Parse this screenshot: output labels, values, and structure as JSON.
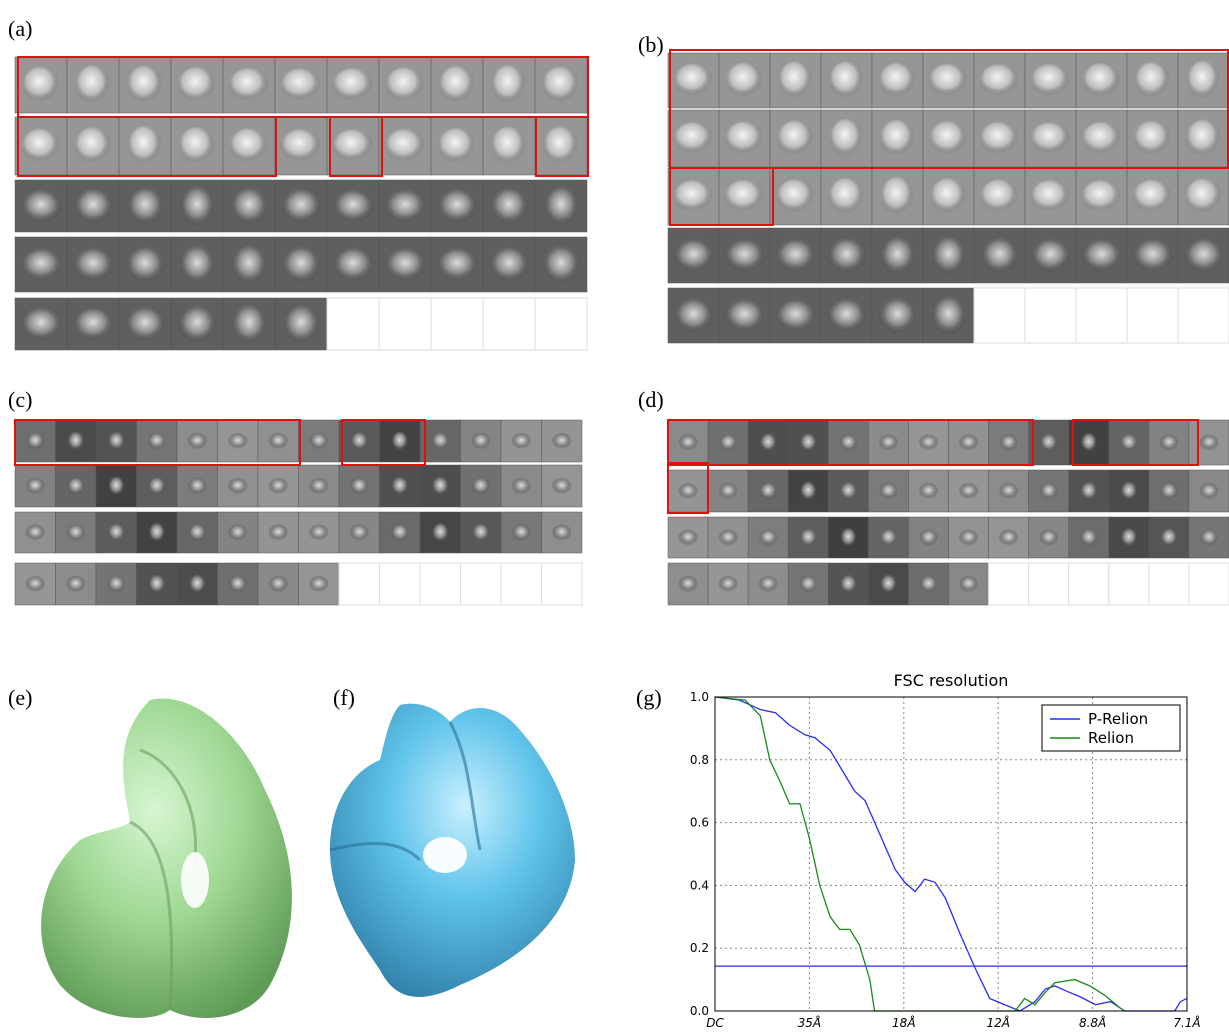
{
  "panels": {
    "a": "(a)",
    "b": "(b)",
    "c": "(c)",
    "d": "(d)",
    "e": "(e)",
    "f": "(f)",
    "g": "(g)"
  },
  "chart_data": {
    "type": "line",
    "title": "FSC resolution",
    "xlim": [
      0,
      5
    ],
    "xticks": [
      {
        "value": 0,
        "label": "DC"
      },
      {
        "value": 1,
        "label": "35Å"
      },
      {
        "value": 2,
        "label": "18Å"
      },
      {
        "value": 3,
        "label": "12Å"
      },
      {
        "value": 4,
        "label": "8.8Å"
      },
      {
        "value": 5,
        "label": "7.1Å"
      }
    ],
    "ylim": [
      0,
      1
    ],
    "yticks": [
      {
        "value": 0,
        "label": "0.0"
      },
      0.2,
      0.4,
      0.6,
      0.8,
      {
        "value": 1,
        "label": "1.0"
      }
    ],
    "grid": true,
    "legend": "upper right",
    "threshold": 0.143,
    "threshold_color": "#2a2aff",
    "series": [
      {
        "name": "P-Relion",
        "color": "#2a2aff",
        "x": [
          0,
          0.26,
          0.48,
          0.64,
          0.79,
          0.95,
          1.06,
          1.22,
          1.38,
          1.48,
          1.59,
          1.75,
          1.91,
          2.01,
          2.12,
          2.22,
          2.33,
          2.44,
          2.59,
          2.75,
          2.91,
          3.07,
          3.23,
          3.39,
          3.5,
          3.6,
          3.71,
          3.87,
          4.03,
          4.19,
          4.34,
          4.87,
          4.93,
          5.0
        ],
        "values": [
          1.0,
          0.99,
          0.96,
          0.95,
          0.91,
          0.88,
          0.87,
          0.83,
          0.75,
          0.7,
          0.67,
          0.56,
          0.45,
          0.41,
          0.38,
          0.42,
          0.41,
          0.36,
          0.25,
          0.14,
          0.04,
          0.02,
          0,
          0.03,
          0.07,
          0.08,
          0.065,
          0.045,
          0.02,
          0.03,
          0,
          0,
          0.03,
          0.04
        ]
      },
      {
        "name": "Relion",
        "color": "#1a8a1a",
        "x": [
          0,
          0.32,
          0.48,
          0.58,
          0.69,
          0.79,
          0.9,
          1.0,
          1.11,
          1.22,
          1.32,
          1.43,
          1.53,
          1.64,
          1.69,
          3.18,
          3.28,
          3.39,
          3.5,
          3.6,
          3.81,
          3.97,
          4.13,
          4.29,
          4.34
        ],
        "values": [
          1.0,
          0.99,
          0.94,
          0.8,
          0.73,
          0.66,
          0.66,
          0.55,
          0.4,
          0.3,
          0.26,
          0.26,
          0.21,
          0.1,
          0.0,
          0.0,
          0.04,
          0.02,
          0.06,
          0.09,
          0.1,
          0.08,
          0.05,
          0.01,
          0
        ]
      }
    ]
  }
}
